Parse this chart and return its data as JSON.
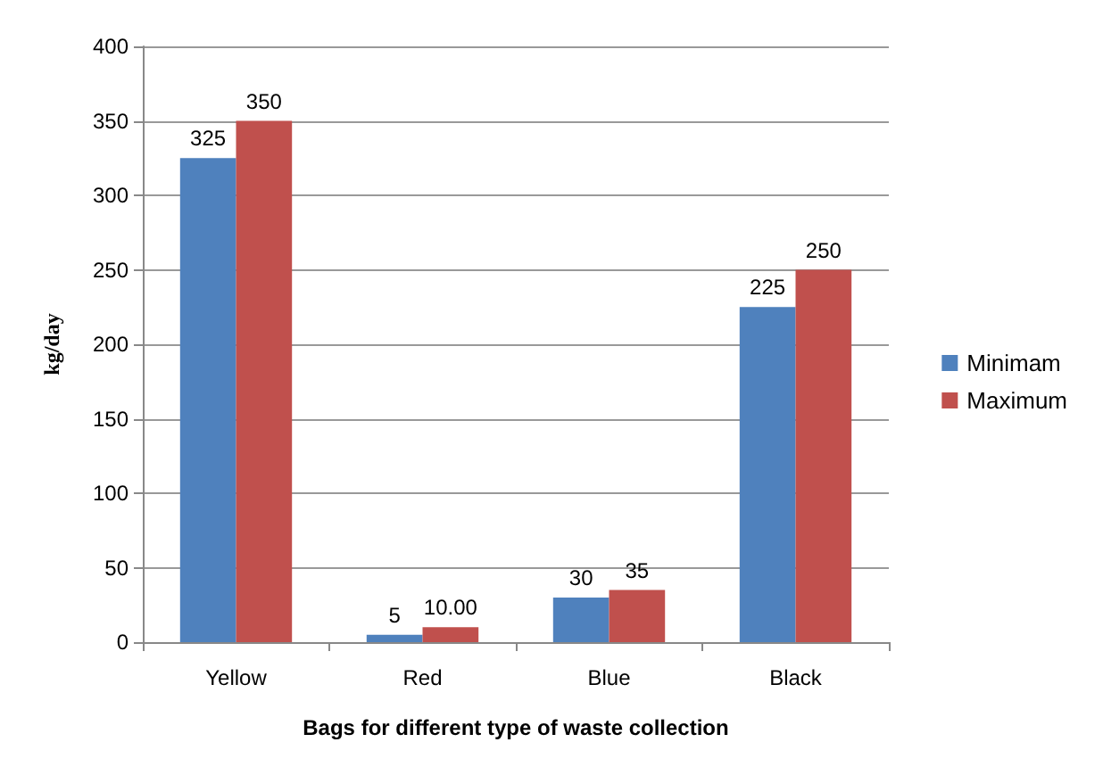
{
  "chart_data": {
    "type": "bar",
    "xlabel": "Bags for different type of waste collection",
    "ylabel": "kg/day",
    "categories": [
      "Yellow",
      "Red",
      "Blue",
      "Black"
    ],
    "series": [
      {
        "name": "Minimam",
        "color": "#4f81bd",
        "values": [
          325,
          5,
          30,
          225
        ],
        "value_labels": [
          "325",
          "5",
          "30",
          "225"
        ]
      },
      {
        "name": "Maximum",
        "color": "#c0504d",
        "values": [
          350,
          10,
          35,
          250
        ],
        "value_labels": [
          "350",
          "10.00",
          "35",
          "250"
        ]
      }
    ],
    "ylim": [
      0,
      400
    ],
    "yticks": [
      0,
      50,
      100,
      150,
      200,
      250,
      300,
      350,
      400
    ],
    "grid": "y",
    "legend": "right"
  }
}
